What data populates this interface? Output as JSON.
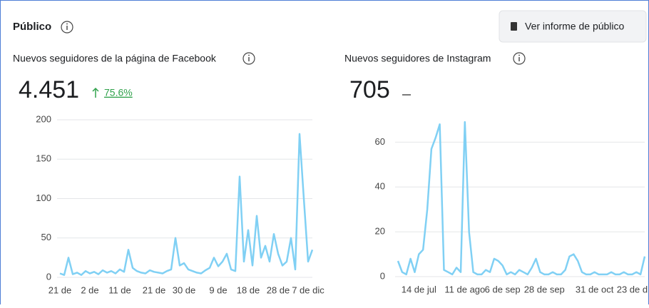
{
  "header": {
    "title": "Público",
    "button": "Ver informe de público"
  },
  "chart_data": [
    {
      "type": "line",
      "title": "Nuevos seguidores de la página de Facebook",
      "total": "4.451",
      "change": "75.6%",
      "color": "#80d0f4",
      "grid": true,
      "ylim": [
        0,
        200
      ],
      "yticks": [
        0,
        50,
        100,
        150,
        200
      ],
      "categories": [
        "21 de",
        null,
        null,
        null,
        null,
        null,
        null,
        "2 de",
        null,
        null,
        null,
        null,
        null,
        null,
        "11 de",
        null,
        null,
        null,
        null,
        null,
        null,
        null,
        "21 de",
        null,
        null,
        null,
        null,
        null,
        null,
        "30 de",
        null,
        null,
        null,
        null,
        null,
        null,
        null,
        "9 de",
        null,
        null,
        null,
        null,
        null,
        null,
        "18 de",
        null,
        null,
        null,
        null,
        null,
        null,
        "28 de",
        null,
        null,
        null,
        null,
        null,
        null,
        "7 de dic",
        null
      ],
      "values": [
        5,
        3,
        25,
        4,
        6,
        3,
        8,
        5,
        7,
        4,
        9,
        6,
        8,
        5,
        10,
        7,
        35,
        12,
        8,
        6,
        5,
        9,
        7,
        6,
        5,
        8,
        10,
        50,
        15,
        18,
        10,
        8,
        6,
        5,
        9,
        12,
        25,
        14,
        20,
        30,
        10,
        8,
        128,
        20,
        60,
        15,
        78,
        25,
        40,
        20,
        55,
        30,
        15,
        20,
        50,
        10,
        182,
        100,
        20,
        35
      ]
    },
    {
      "type": "line",
      "title": "Nuevos seguidores de Instagram",
      "total": "705",
      "color": "#80d0f4",
      "grid": true,
      "ylim": [
        0,
        70
      ],
      "yticks": [
        0,
        20,
        40,
        60
      ],
      "categories": [
        null,
        null,
        null,
        null,
        null,
        "14 de jul",
        null,
        null,
        null,
        null,
        null,
        null,
        null,
        null,
        null,
        null,
        "11 de ago",
        null,
        null,
        null,
        null,
        null,
        null,
        null,
        null,
        "6 de sep",
        null,
        null,
        null,
        null,
        null,
        null,
        null,
        null,
        null,
        "28 de sep",
        null,
        null,
        null,
        null,
        null,
        null,
        null,
        null,
        null,
        null,
        null,
        "31 de oct",
        null,
        null,
        null,
        null,
        null,
        null,
        null,
        null,
        "23 de d",
        null,
        null,
        null
      ],
      "values": [
        7,
        2,
        1,
        8,
        2,
        10,
        12,
        30,
        57,
        62,
        68,
        3,
        2,
        1,
        4,
        2,
        69,
        20,
        2,
        1,
        1,
        3,
        2,
        8,
        7,
        5,
        1,
        2,
        1,
        3,
        2,
        1,
        4,
        8,
        2,
        1,
        1,
        2,
        1,
        1,
        3,
        9,
        10,
        7,
        2,
        1,
        1,
        2,
        1,
        1,
        1,
        2,
        1,
        1,
        2,
        1,
        1,
        2,
        1,
        9
      ]
    }
  ]
}
